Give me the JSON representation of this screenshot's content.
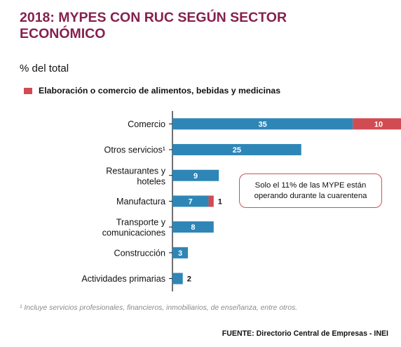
{
  "header": {
    "title": "2018: MYPES CON RUC SEGÚN SECTOR ECONÓMICO",
    "subtitle": "% del total"
  },
  "colors": {
    "title": "#86204e",
    "main": "#2e86b6",
    "food": "#d14b52",
    "callout_border": "#c8545a"
  },
  "chart_data": {
    "type": "bar",
    "orientation": "horizontal",
    "stacked": true,
    "categories": [
      "Comercio",
      "Otros servicios¹",
      "Restaurantes y hoteles",
      "Manufactura",
      "Transporte y comunicaciones",
      "Construcción",
      "Actividades primarias"
    ],
    "series": [
      {
        "values": [
          35,
          25,
          9,
          7,
          8,
          3,
          2
        ]
      },
      {
        "name": "Elaboración o comercio de alimentos, bebidas y medicinas",
        "values": [
          10,
          null,
          null,
          1,
          null,
          null,
          null
        ]
      }
    ],
    "legend": [
      "Elaboración o comercio de alimentos, bebidas y medicinas"
    ],
    "legend_position": "top-left",
    "xlim": [
      0,
      50
    ],
    "grid": false,
    "annotation": "Solo el 11% de las MYPE están operando durante la cuarentena"
  },
  "footnote": "¹ Incluye servicios profesionales, financieros, inmobiliarios, de enseñanza, entre otros.",
  "source": "FUENTE: Directorio Central de Empresas - INEI"
}
